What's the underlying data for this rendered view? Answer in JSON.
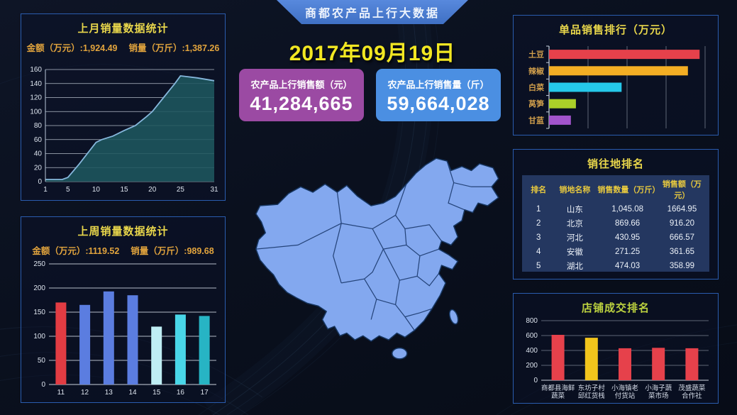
{
  "header": {
    "banner_title": "商都农产品上行大数据",
    "date": "2017年09月19日"
  },
  "kpis": {
    "amount": {
      "label": "农产品上行销售额（元）",
      "value": "41,284,665",
      "color": "#9b4aa3"
    },
    "volume": {
      "label": "农产品上行销售量（斤）",
      "value": "59,664,028",
      "color": "#4b8fe2"
    }
  },
  "panels": {
    "monthly": {
      "amount_stat": "金额（万元）:1,924.49",
      "volume_stat": "销量（万斤）:1,387.26"
    },
    "weekly": {
      "amount_stat": "金额（万元）:1119.52",
      "volume_stat": "销量（万斤）:989.68"
    }
  },
  "colors": {
    "panel_border": "#2a5cae",
    "title_yellow": "#e9d74b",
    "title_green": "#bcd23f",
    "stat_orange": "#e2a43d",
    "map_fill": "#83a8ef",
    "map_stroke": "#16355f"
  },
  "chart_data": [
    {
      "id": "monthly-area",
      "type": "area",
      "title": "上月销量数据统计",
      "x": [
        1,
        4,
        5,
        7,
        10,
        11,
        13,
        15,
        17,
        19,
        20,
        22,
        24,
        25,
        28,
        31
      ],
      "y": [
        3,
        3,
        6,
        25,
        56,
        60,
        65,
        73,
        80,
        93,
        100,
        120,
        140,
        151,
        148,
        144
      ],
      "xticks": [
        1,
        5,
        10,
        15,
        20,
        25,
        31
      ],
      "xlim": [
        1,
        31
      ],
      "ylim": [
        0,
        160
      ],
      "ystep": 20,
      "line_color": "#86b7dc",
      "fill_color": "rgba(30,86,95,0.88)",
      "grid": true
    },
    {
      "id": "weekly-bar",
      "type": "bar",
      "title": "上周销量数据统计",
      "categories": [
        "11",
        "12",
        "13",
        "14",
        "15",
        "16",
        "17"
      ],
      "values": [
        170,
        165,
        193,
        185,
        120,
        145,
        142
      ],
      "colors": [
        "#e23c43",
        "#5b7de0",
        "#5b7de0",
        "#5b7de0",
        "#bfeef4",
        "#49d6e8",
        "#27b4c4"
      ],
      "ylim": [
        0,
        250
      ],
      "ystep": 50,
      "grid": true
    },
    {
      "id": "product-hbar",
      "type": "hbar",
      "title": "单品销售排行（万元）",
      "categories": [
        "土豆",
        "辣椒",
        "白菜",
        "莴笋",
        "甘蓝"
      ],
      "values": [
        1930,
        1780,
        930,
        345,
        280
      ],
      "colors": [
        "#e6414b",
        "#f3ae24",
        "#25c8ea",
        "#abd029",
        "#a254cc"
      ],
      "xlim": [
        0,
        2000
      ],
      "gridstep": 500,
      "grid": true
    },
    {
      "id": "destinations-table",
      "type": "table",
      "title": "销往地排名",
      "headers": [
        "排名",
        "销地名称",
        "销售数量（万斤）",
        "销售额（万元）"
      ],
      "rows": [
        [
          "1",
          "山东",
          "1,045.08",
          "1664.95"
        ],
        [
          "2",
          "北京",
          "869.66",
          "916.20"
        ],
        [
          "3",
          "河北",
          "430.95",
          "666.57"
        ],
        [
          "4",
          "安徽",
          "271.25",
          "361.65"
        ],
        [
          "5",
          "湖北",
          "474.03",
          "358.99"
        ]
      ]
    },
    {
      "id": "shop-bar",
      "type": "bar",
      "title": "店铺成交排名",
      "categories": [
        "商都县海鲜蔬菜",
        "东坊子村邱红货栈",
        "小海镇老付货站",
        "小海子蔬菜市场",
        "茂盛蔬菜合作社"
      ],
      "labels_line1": [
        "商都县海鲜",
        "东坊子村",
        "小海镇老",
        "小海子蔬",
        "茂盛蔬菜"
      ],
      "labels_line2": [
        "蔬菜",
        "邱红货栈",
        "付货站",
        "菜市场",
        "合作社"
      ],
      "values": [
        610,
        570,
        430,
        435,
        430
      ],
      "colors": [
        "#e6414b",
        "#f2c51c",
        "#e6414b",
        "#e6414b",
        "#e6414b"
      ],
      "ylim": [
        0,
        800
      ],
      "ystep": 200,
      "grid": true,
      "two_line": true
    }
  ]
}
